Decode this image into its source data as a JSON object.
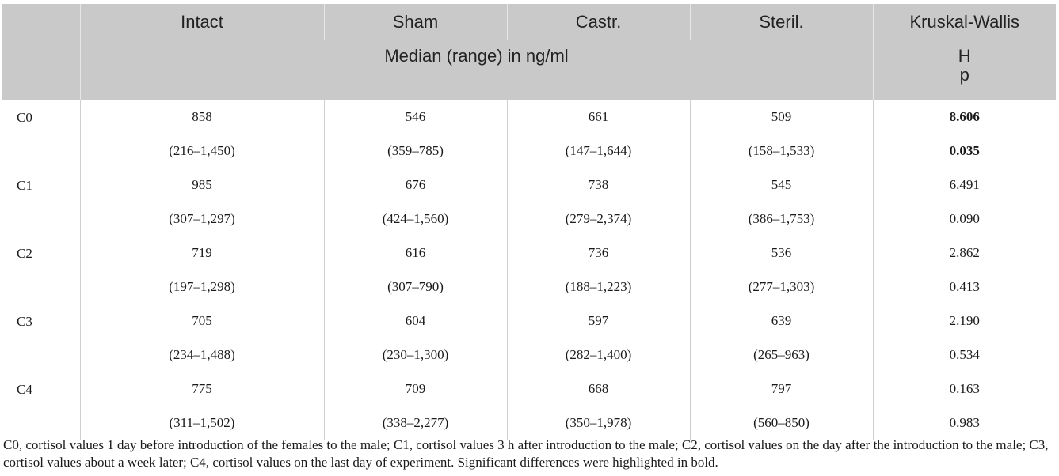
{
  "headers": {
    "intact": "Intact",
    "sham": "Sham",
    "castr": "Castr.",
    "steril": "Steril.",
    "kw": "Kruskal-Wallis",
    "subheader": "Median (range) in ng/ml",
    "h_label": "H",
    "p_label": "p"
  },
  "rows": [
    {
      "label": "C0",
      "medians": [
        "858",
        "546",
        "661",
        "509"
      ],
      "ranges": [
        "(216–1,450)",
        "(359–785)",
        "(147–1,644)",
        "(158–1,533)"
      ],
      "H": "8.606",
      "p": "0.035",
      "significant": true
    },
    {
      "label": "C1",
      "medians": [
        "985",
        "676",
        "738",
        "545"
      ],
      "ranges": [
        "(307–1,297)",
        "(424–1,560)",
        "(279–2,374)",
        "(386–1,753)"
      ],
      "H": "6.491",
      "p": "0.090",
      "significant": false
    },
    {
      "label": "C2",
      "medians": [
        "719",
        "616",
        "736",
        "536"
      ],
      "ranges": [
        "(197–1,298)",
        "(307–790)",
        "(188–1,223)",
        "(277–1,303)"
      ],
      "H": "2.862",
      "p": "0.413",
      "significant": false
    },
    {
      "label": "C3",
      "medians": [
        "705",
        "604",
        "597",
        "639"
      ],
      "ranges": [
        "(234–1,488)",
        "(230–1,300)",
        "(282–1,400)",
        "(265–963)"
      ],
      "H": "2.190",
      "p": "0.534",
      "significant": false
    },
    {
      "label": "C4",
      "medians": [
        "775",
        "709",
        "668",
        "797"
      ],
      "ranges": [
        "(311–1,502)",
        "(338–2,277)",
        "(350–1,978)",
        "(560–850)"
      ],
      "H": "0.163",
      "p": "0.983",
      "significant": false
    }
  ],
  "footnote": "C0, cortisol values 1 day before introduction of the females to the male; C1, cortisol values 3 h after introduction to the male; C2, cortisol values on the day after the introduction to the male; C3, cortisol values about a week later; C4, cortisol values on the last day of experiment. Significant differences were highlighted in bold."
}
